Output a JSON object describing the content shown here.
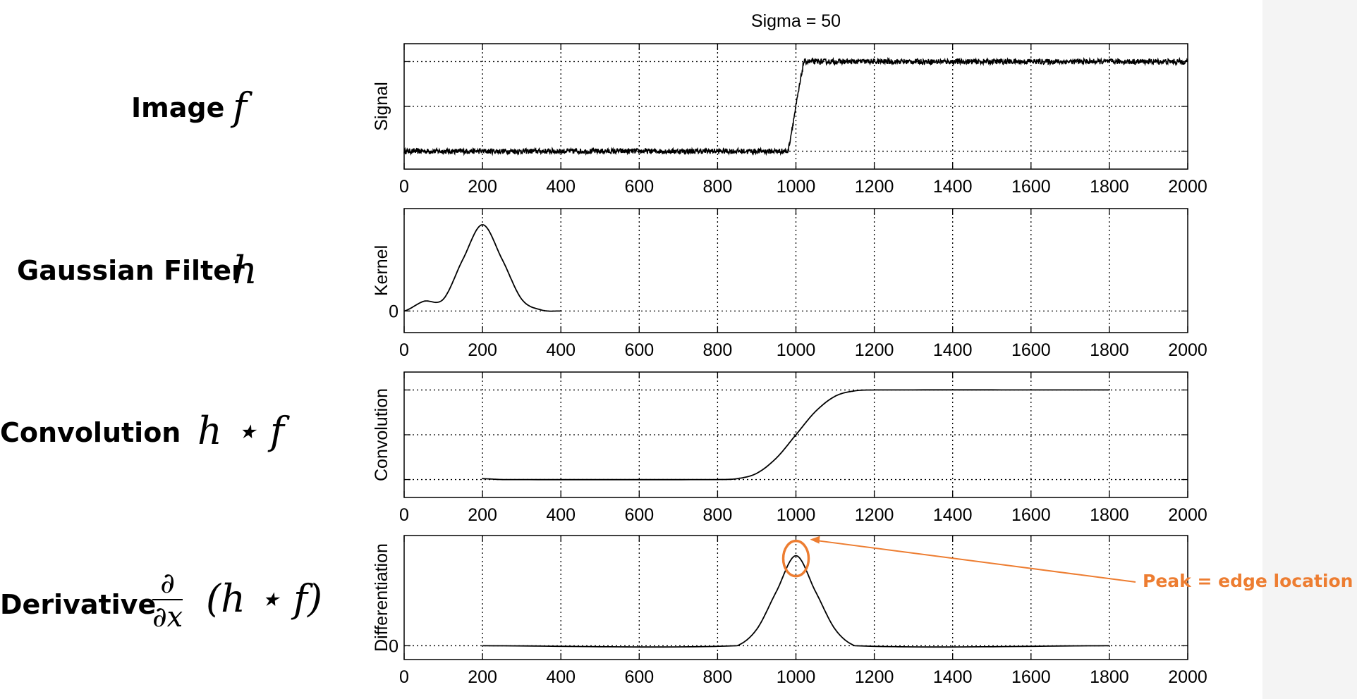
{
  "title": "Sigma = 50",
  "row_labels": {
    "image": "Image",
    "gaussian": "Gaussian Filter",
    "convolution": "Convolution",
    "derivative": "Derivative"
  },
  "math": {
    "image": "f",
    "gaussian": "h",
    "convolution": "h ⋆ f",
    "derivative_num": "∂",
    "derivative_den": "∂x",
    "derivative_rest": "(h ⋆ f)"
  },
  "annotation": {
    "text": "Peak = edge location",
    "color": "#ED7D31"
  },
  "chart_data": [
    {
      "type": "line",
      "title": "Sigma = 50",
      "ylabel": "Signal",
      "xlim": [
        0,
        2000
      ],
      "xticks": [
        0,
        200,
        400,
        600,
        800,
        1000,
        1200,
        1400,
        1600,
        1800,
        2000
      ],
      "ylim": [
        -0.2,
        1.2
      ],
      "ygridlines": [
        0,
        0.5,
        1
      ],
      "ytick_labels": [],
      "grid": true,
      "series": [
        {
          "x": [
            0,
            980,
            1020,
            2000
          ],
          "y": [
            0,
            0,
            1,
            1
          ],
          "noise": 0.03
        }
      ]
    },
    {
      "type": "line",
      "ylabel": "Kernel",
      "xlim": [
        0,
        2000
      ],
      "xticks": [
        0,
        200,
        400,
        600,
        800,
        1000,
        1200,
        1400,
        1600,
        1800,
        2000
      ],
      "ylim": [
        -0.002,
        0.0095
      ],
      "ygridlines": [
        0
      ],
      "ytick_labels": [
        "0"
      ],
      "grid": true,
      "series": [
        {
          "x": [
            0,
            50,
            100,
            150,
            200,
            250,
            300,
            350,
            400
          ],
          "y": [
            0.0,
            0.0009,
            0.0011,
            0.0048,
            0.008,
            0.0048,
            0.0011,
            0.0001,
            0.0
          ]
        }
      ]
    },
    {
      "type": "line",
      "ylabel": "Convolution",
      "xlim": [
        0,
        2000
      ],
      "xticks": [
        0,
        200,
        400,
        600,
        800,
        1000,
        1200,
        1400,
        1600,
        1800,
        2000
      ],
      "ylim": [
        -0.2,
        1.2
      ],
      "ygridlines": [
        0,
        0.5,
        1
      ],
      "ytick_labels": [],
      "grid": true,
      "series": [
        {
          "x": [
            200,
            250,
            800,
            850,
            900,
            950,
            1000,
            1050,
            1100,
            1150,
            1200,
            1800
          ],
          "y": [
            0.01,
            0.0,
            0.0,
            0.01,
            0.07,
            0.24,
            0.5,
            0.76,
            0.93,
            0.99,
            1.0,
            1.0
          ]
        }
      ]
    },
    {
      "type": "line",
      "ylabel": "Differentiation",
      "xlim": [
        0,
        2000
      ],
      "xticks": [
        0,
        200,
        400,
        600,
        800,
        1000,
        1200,
        1400,
        1600,
        1800,
        2000
      ],
      "ylim": [
        -0.0015,
        0.012
      ],
      "ygridlines": [
        0
      ],
      "ytick_labels": [
        "0"
      ],
      "grid": true,
      "series": [
        {
          "x": [
            200,
            850,
            900,
            950,
            1000,
            1050,
            1100,
            1150,
            1800
          ],
          "y": [
            0.0,
            0.0,
            0.0018,
            0.0059,
            0.0098,
            0.0059,
            0.0018,
            0.0,
            0.0
          ]
        }
      ]
    }
  ]
}
